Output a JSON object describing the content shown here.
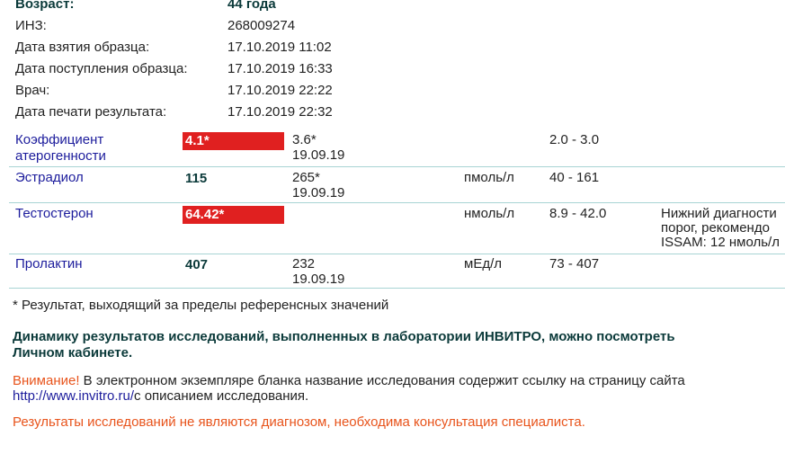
{
  "patient": {
    "rows": [
      {
        "label": "Возраст:",
        "value": "44 года",
        "bold": true
      },
      {
        "label": "ИНЗ:",
        "value": "268009274"
      },
      {
        "label": "Дата взятия образца:",
        "value": "17.10.2019 11:02"
      },
      {
        "label": "Дата поступления образца:",
        "value": "17.10.2019 16:33"
      },
      {
        "label": "Врач:",
        "value": "17.10.2019 22:22"
      },
      {
        "label": "Дата печати результата:",
        "value": "17.10.2019 22:32"
      }
    ]
  },
  "results": {
    "rows": [
      {
        "name": "Коэффициент атерогенности",
        "result": "4.1*",
        "highlighted": true,
        "prev_value": "3.6*",
        "prev_date": "19.09.19",
        "reference": "2.0 - 3.0"
      },
      {
        "name": "Эстрадиол",
        "result": "115",
        "prev_value": "265*",
        "prev_date": "19.09.19",
        "unit": "пмоль/л",
        "reference": "40 - 161"
      },
      {
        "name": "Тестостерон",
        "result": "64.42*",
        "highlighted": true,
        "unit": "нмоль/л",
        "reference": "8.9 - 42.0",
        "comment": [
          "Нижний диагности",
          "порог, рекомендо",
          "ISSAM: 12 нмоль/л"
        ]
      },
      {
        "name": "Пролактин",
        "result": "407",
        "prev_value": "232",
        "prev_date": "19.09.19",
        "unit": "мЕд/л",
        "reference": "73 - 407"
      }
    ]
  },
  "footnote": "* Результат, выходящий за пределы референсных значений",
  "notice": {
    "bold_lines": [
      "Динамику результатов исследований, выполненных в лаборатории ИНВИТРО, можно посмотреть",
      "Личном кабинете."
    ],
    "warning_label": "Внимание!",
    "warning_text": "В электронном экземпляре бланка название исследования содержит ссылку на страницу сайта",
    "link": "http://www.invitro.ru/",
    "link_suffix": "с описанием исследования."
  },
  "disclaimer": "Результаты исследований не являются диагнозом, необходима консультация специалиста."
}
